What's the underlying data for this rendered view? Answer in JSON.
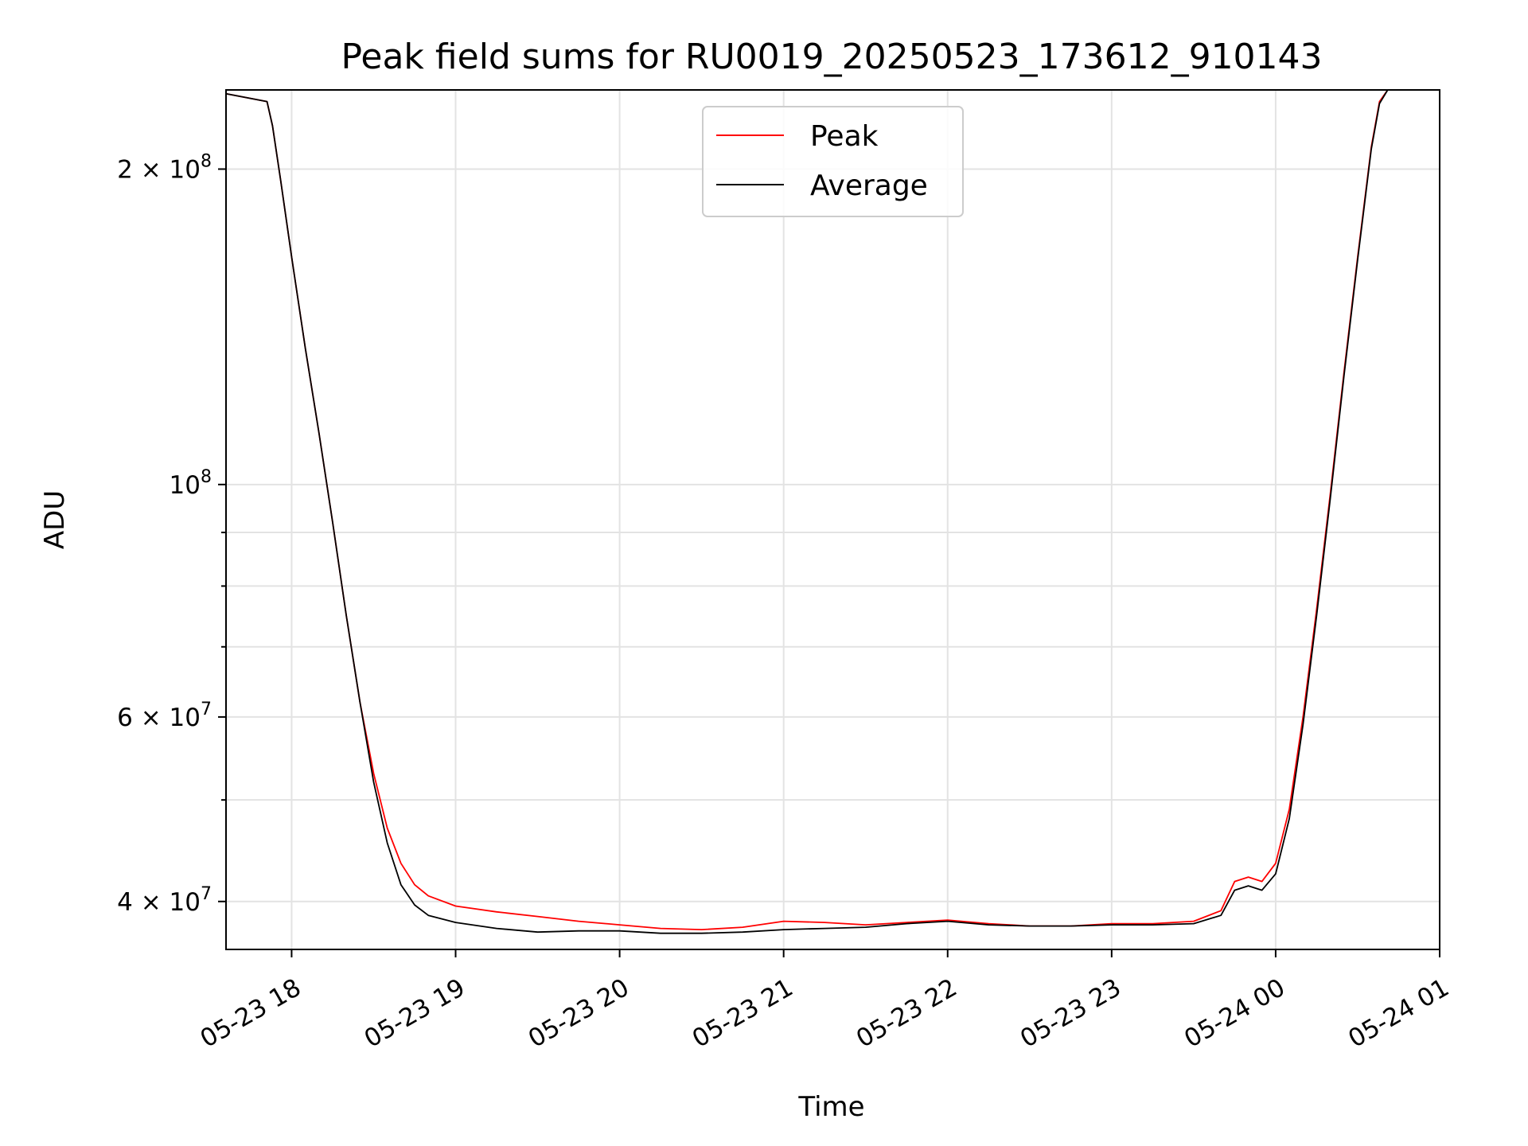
{
  "chart_data": {
    "type": "line",
    "title": "Peak field sums for RU0019_20250523_173612_910143",
    "xlabel": "Time",
    "ylabel": "ADU",
    "y_scale": "log",
    "grid": true,
    "legend_position": "upper center",
    "xlim": [
      "2025-05-23 17:36",
      "2025-05-24 01:00"
    ],
    "ylim": [
      36000000,
      238000000
    ],
    "x_ticks": [
      {
        "value": "2025-05-23 18:00",
        "label": "05-23 18"
      },
      {
        "value": "2025-05-23 19:00",
        "label": "05-23 19"
      },
      {
        "value": "2025-05-23 20:00",
        "label": "05-23 20"
      },
      {
        "value": "2025-05-23 21:00",
        "label": "05-23 21"
      },
      {
        "value": "2025-05-23 22:00",
        "label": "05-23 22"
      },
      {
        "value": "2025-05-23 23:00",
        "label": "05-23 23"
      },
      {
        "value": "2025-05-24 00:00",
        "label": "05-24 00"
      },
      {
        "value": "2025-05-24 01:00",
        "label": "05-24 01"
      }
    ],
    "y_major_ticks": [
      {
        "value": 40000000,
        "mantissa": "4 × 10",
        "exp": "7"
      },
      {
        "value": 60000000,
        "mantissa": "6 × 10",
        "exp": "7"
      },
      {
        "value": 100000000,
        "mantissa": "10",
        "exp": "8"
      },
      {
        "value": 200000000,
        "mantissa": "2 × 10",
        "exp": "8"
      }
    ],
    "y_minor_ticks": [
      50000000,
      70000000,
      80000000,
      90000000
    ],
    "series": [
      {
        "name": "Peak",
        "color": "#ff0000",
        "points": [
          [
            "2025-05-23 17:36",
            236000000
          ],
          [
            "2025-05-23 17:51",
            232000000
          ],
          [
            "2025-05-23 17:53",
            220000000
          ],
          [
            "2025-05-23 17:56",
            195000000
          ],
          [
            "2025-05-23 18:00",
            165000000
          ],
          [
            "2025-05-23 18:05",
            135000000
          ],
          [
            "2025-05-23 18:10",
            112000000
          ],
          [
            "2025-05-23 18:15",
            92000000
          ],
          [
            "2025-05-23 18:20",
            75000000
          ],
          [
            "2025-05-23 18:25",
            62000000
          ],
          [
            "2025-05-23 18:30",
            53000000
          ],
          [
            "2025-05-23 18:35",
            47000000
          ],
          [
            "2025-05-23 18:40",
            43500000
          ],
          [
            "2025-05-23 18:45",
            41500000
          ],
          [
            "2025-05-23 18:50",
            40500000
          ],
          [
            "2025-05-23 19:00",
            39600000
          ],
          [
            "2025-05-23 19:15",
            39100000
          ],
          [
            "2025-05-23 19:30",
            38700000
          ],
          [
            "2025-05-23 19:45",
            38300000
          ],
          [
            "2025-05-23 20:00",
            38000000
          ],
          [
            "2025-05-23 20:15",
            37700000
          ],
          [
            "2025-05-23 20:30",
            37600000
          ],
          [
            "2025-05-23 20:45",
            37800000
          ],
          [
            "2025-05-23 21:00",
            38300000
          ],
          [
            "2025-05-23 21:15",
            38200000
          ],
          [
            "2025-05-23 21:30",
            38000000
          ],
          [
            "2025-05-23 21:45",
            38200000
          ],
          [
            "2025-05-23 22:00",
            38400000
          ],
          [
            "2025-05-23 22:15",
            38100000
          ],
          [
            "2025-05-23 22:30",
            37900000
          ],
          [
            "2025-05-23 22:45",
            37900000
          ],
          [
            "2025-05-23 23:00",
            38100000
          ],
          [
            "2025-05-23 23:15",
            38100000
          ],
          [
            "2025-05-23 23:30",
            38300000
          ],
          [
            "2025-05-23 23:40",
            39200000
          ],
          [
            "2025-05-23 23:45",
            41800000
          ],
          [
            "2025-05-23 23:50",
            42200000
          ],
          [
            "2025-05-23 23:55",
            41800000
          ],
          [
            "2025-05-24 00:00",
            43500000
          ],
          [
            "2025-05-24 00:05",
            49000000
          ],
          [
            "2025-05-24 00:10",
            60000000
          ],
          [
            "2025-05-24 00:15",
            76000000
          ],
          [
            "2025-05-24 00:20",
            98000000
          ],
          [
            "2025-05-24 00:25",
            128000000
          ],
          [
            "2025-05-24 00:30",
            165000000
          ],
          [
            "2025-05-24 00:35",
            210000000
          ],
          [
            "2025-05-24 00:38",
            232000000
          ],
          [
            "2025-05-24 00:41",
            238000000
          ],
          [
            "2025-05-24 01:00",
            238000000
          ]
        ]
      },
      {
        "name": "Average",
        "color": "#000000",
        "points": [
          [
            "2025-05-23 17:36",
            236000000
          ],
          [
            "2025-05-23 17:51",
            232000000
          ],
          [
            "2025-05-23 17:53",
            220000000
          ],
          [
            "2025-05-23 17:56",
            195000000
          ],
          [
            "2025-05-23 18:00",
            165000000
          ],
          [
            "2025-05-23 18:05",
            135000000
          ],
          [
            "2025-05-23 18:10",
            112000000
          ],
          [
            "2025-05-23 18:15",
            92000000
          ],
          [
            "2025-05-23 18:20",
            75000000
          ],
          [
            "2025-05-23 18:25",
            62000000
          ],
          [
            "2025-05-23 18:30",
            52000000
          ],
          [
            "2025-05-23 18:35",
            45500000
          ],
          [
            "2025-05-23 18:40",
            41500000
          ],
          [
            "2025-05-23 18:45",
            39700000
          ],
          [
            "2025-05-23 18:50",
            38800000
          ],
          [
            "2025-05-23 19:00",
            38200000
          ],
          [
            "2025-05-23 19:15",
            37700000
          ],
          [
            "2025-05-23 19:30",
            37400000
          ],
          [
            "2025-05-23 19:45",
            37500000
          ],
          [
            "2025-05-23 20:00",
            37500000
          ],
          [
            "2025-05-23 20:15",
            37300000
          ],
          [
            "2025-05-23 20:30",
            37300000
          ],
          [
            "2025-05-23 20:45",
            37400000
          ],
          [
            "2025-05-23 21:00",
            37600000
          ],
          [
            "2025-05-23 21:15",
            37700000
          ],
          [
            "2025-05-23 21:30",
            37800000
          ],
          [
            "2025-05-23 21:45",
            38100000
          ],
          [
            "2025-05-23 22:00",
            38300000
          ],
          [
            "2025-05-23 22:15",
            38000000
          ],
          [
            "2025-05-23 22:30",
            37900000
          ],
          [
            "2025-05-23 22:45",
            37900000
          ],
          [
            "2025-05-23 23:00",
            38000000
          ],
          [
            "2025-05-23 23:15",
            38000000
          ],
          [
            "2025-05-23 23:30",
            38100000
          ],
          [
            "2025-05-23 23:40",
            38800000
          ],
          [
            "2025-05-23 23:45",
            41000000
          ],
          [
            "2025-05-23 23:50",
            41400000
          ],
          [
            "2025-05-23 23:55",
            41000000
          ],
          [
            "2025-05-24 00:00",
            42500000
          ],
          [
            "2025-05-24 00:05",
            48000000
          ],
          [
            "2025-05-24 00:10",
            59000000
          ],
          [
            "2025-05-24 00:15",
            75000000
          ],
          [
            "2025-05-24 00:20",
            97000000
          ],
          [
            "2025-05-24 00:25",
            127000000
          ],
          [
            "2025-05-24 00:30",
            164000000
          ],
          [
            "2025-05-24 00:35",
            209000000
          ],
          [
            "2025-05-24 00:38",
            231000000
          ],
          [
            "2025-05-24 00:41",
            238000000
          ],
          [
            "2025-05-24 01:00",
            238000000
          ]
        ]
      }
    ]
  }
}
